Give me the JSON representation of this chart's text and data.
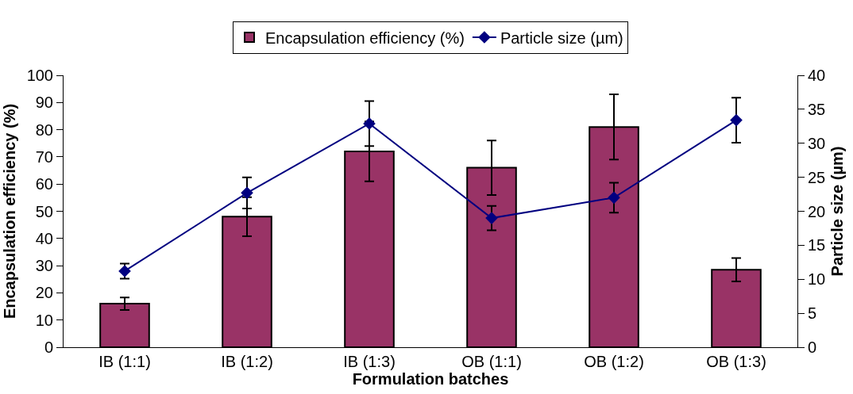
{
  "chart_data": {
    "type": "bar",
    "xlabel": "Formulation batches",
    "ylabel": "Encapsulation efficiency (%)",
    "y2label": "Particle size (µm)",
    "categories": [
      "IB (1:1)",
      "IB (1:2)",
      "IB (1:3)",
      "OB (1:1)",
      "OB (1:2)",
      "OB (1:3)"
    ],
    "series": [
      {
        "name": "Encapsulation efficiency (%)",
        "color": "#993366",
        "values": [
          16,
          48,
          72,
          66,
          81,
          28.5
        ],
        "errors": [
          2.3,
          7.2,
          11,
          10,
          12,
          4.3
        ]
      },
      {
        "name": "Particle size (µm)",
        "type": "line",
        "axis": "y2",
        "color": "#000080",
        "marker": "diamond",
        "values": [
          11.2,
          22.7,
          32.9,
          19,
          22,
          33.4
        ],
        "errors": [
          1.1,
          2.3,
          3.3,
          1.8,
          2.2,
          3.3
        ]
      }
    ],
    "ylim": [
      0,
      100
    ],
    "yticks": [
      0,
      10,
      20,
      30,
      40,
      50,
      60,
      70,
      80,
      90,
      100
    ],
    "y2lim": [
      0,
      40
    ],
    "y2ticks": [
      0,
      5,
      10,
      15,
      20,
      25,
      30,
      35,
      40
    ],
    "grid": false,
    "legend": "top"
  }
}
